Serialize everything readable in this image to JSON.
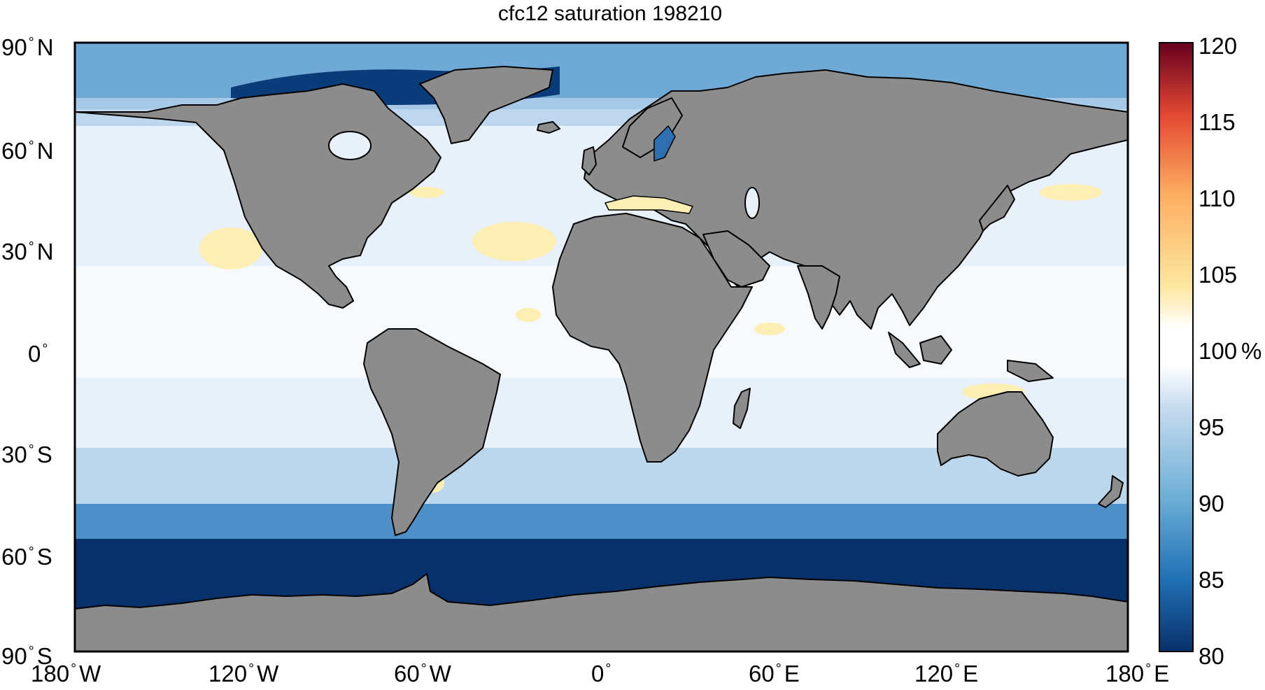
{
  "title": "cfc12 saturation 198210",
  "axes": {
    "lat_ticks": [
      {
        "deg": "90",
        "hemi": "N"
      },
      {
        "deg": "60",
        "hemi": "N"
      },
      {
        "deg": "30",
        "hemi": "N"
      },
      {
        "deg": "0",
        "hemi": ""
      },
      {
        "deg": "30",
        "hemi": "S"
      },
      {
        "deg": "60",
        "hemi": "S"
      },
      {
        "deg": "90",
        "hemi": "S"
      }
    ],
    "lon_ticks": [
      {
        "deg": "180",
        "hemi": "W"
      },
      {
        "deg": "120",
        "hemi": "W"
      },
      {
        "deg": "60",
        "hemi": "W"
      },
      {
        "deg": "0",
        "hemi": ""
      },
      {
        "deg": "60",
        "hemi": "E"
      },
      {
        "deg": "120",
        "hemi": "E"
      },
      {
        "deg": "180",
        "hemi": "E"
      }
    ],
    "degree_symbol": "°"
  },
  "colorbar": {
    "ticks": [
      "120",
      "115",
      "110",
      "105",
      "100",
      "95",
      "90",
      "85",
      "80"
    ],
    "unit": "%",
    "range": [
      80,
      120
    ],
    "colors_low_to_high": [
      "#08306b",
      "#2171b5",
      "#6baed6",
      "#c6dbef",
      "#ffffff",
      "#fde7a0",
      "#fdae61",
      "#f46d43",
      "#d73027",
      "#67001f"
    ]
  },
  "map": {
    "land_color": "#8c8c8c",
    "coast_color": "#000000",
    "ocean_base_color": "#eaf2fa"
  }
}
